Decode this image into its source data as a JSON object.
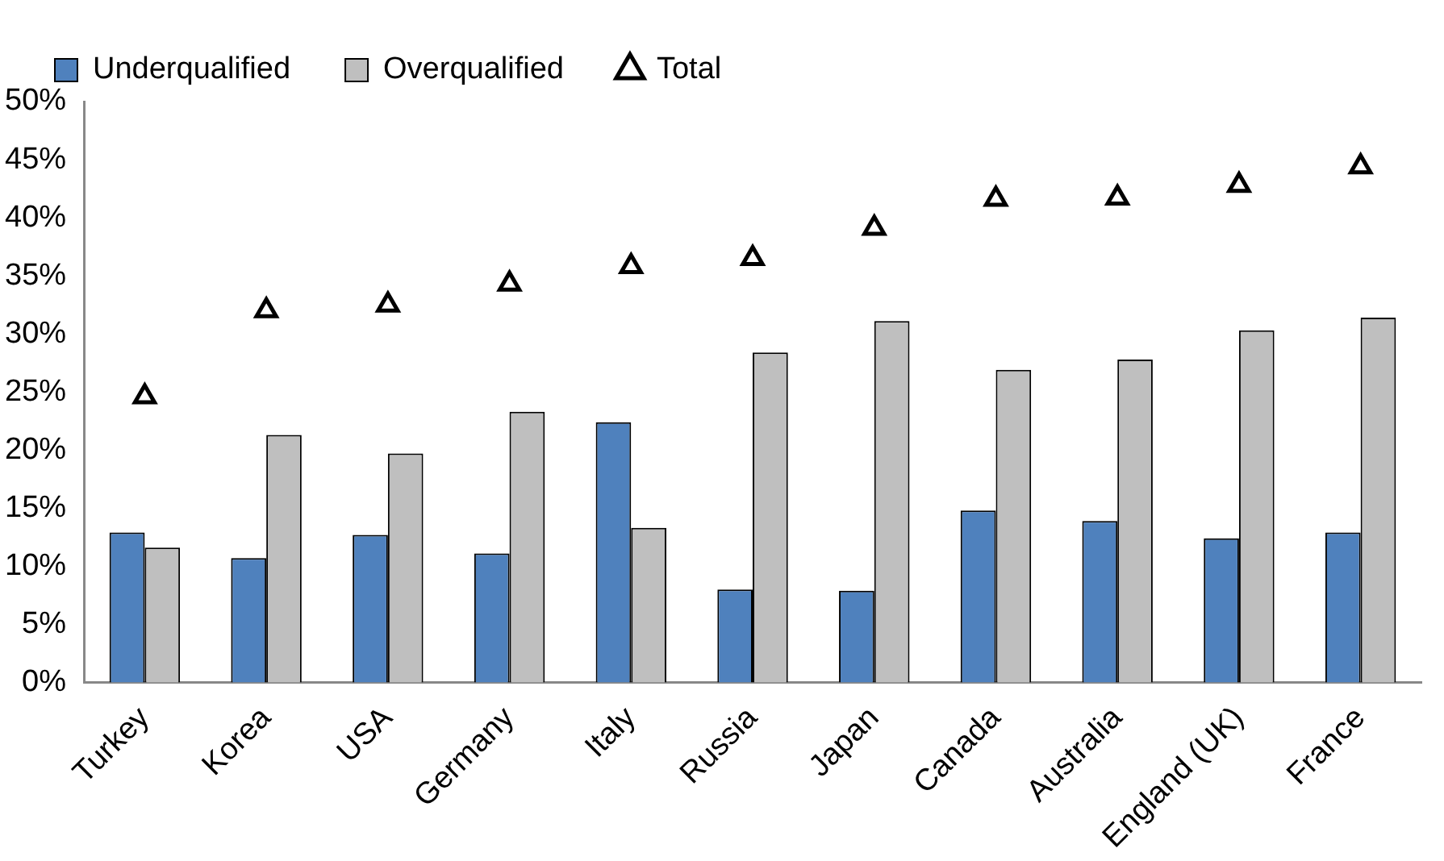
{
  "chart_data": {
    "type": "bar",
    "categories": [
      "Turkey",
      "Korea",
      "USA",
      "Germany",
      "Italy",
      "Russia",
      "Japan",
      "Canada",
      "Australia",
      "England (UK)",
      "France"
    ],
    "series": [
      {
        "name": "Underqualified",
        "color": "#4f81bd",
        "values": [
          12.9,
          10.7,
          12.7,
          11.1,
          22.4,
          8.0,
          7.9,
          14.8,
          13.9,
          12.4,
          12.9
        ]
      },
      {
        "name": "Overqualified",
        "color": "#bfbfbf",
        "values": [
          11.6,
          21.3,
          19.7,
          23.3,
          13.3,
          28.4,
          31.1,
          26.9,
          27.8,
          30.3,
          31.4
        ]
      },
      {
        "name": "Total",
        "type": "scatter",
        "marker": "triangle",
        "color": "#000000",
        "values": [
          24.6,
          32.0,
          32.5,
          34.3,
          35.8,
          36.5,
          39.1,
          41.6,
          41.7,
          42.8,
          44.4
        ]
      }
    ],
    "ylim": [
      0,
      50
    ],
    "yticks": [
      {
        "value": 0,
        "label": "0%"
      },
      {
        "value": 5,
        "label": "5%"
      },
      {
        "value": 10,
        "label": "10%"
      },
      {
        "value": 15,
        "label": "15%"
      },
      {
        "value": 20,
        "label": "20%"
      },
      {
        "value": 25,
        "label": "25%"
      },
      {
        "value": 30,
        "label": "30%"
      },
      {
        "value": 35,
        "label": "35%"
      },
      {
        "value": 40,
        "label": "40%"
      },
      {
        "value": 45,
        "label": "45%"
      },
      {
        "value": 50,
        "label": "50%"
      }
    ],
    "grid": false,
    "legend": "top"
  }
}
